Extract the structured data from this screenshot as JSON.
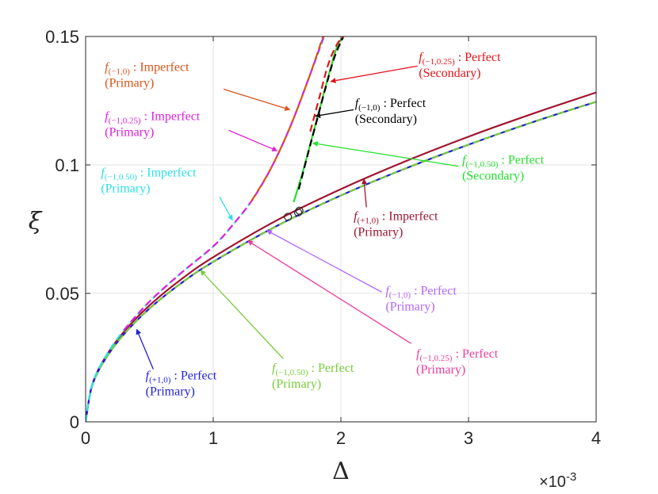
{
  "chart_data": {
    "type": "line",
    "title": "",
    "xlabel": "Δ",
    "ylabel": "ξ",
    "x_exponent": "×10-3",
    "xlim": [
      0,
      4
    ],
    "ylim": [
      0,
      0.15
    ],
    "xticks": [
      0,
      1,
      2,
      3,
      4
    ],
    "xtick_labels": [
      "0",
      "1",
      "2",
      "3",
      "4"
    ],
    "yticks": [
      0,
      0.05,
      0.1,
      0.15
    ],
    "ytick_labels": [
      "0",
      "0.05",
      "0.1",
      "0.15"
    ],
    "grid": true,
    "colors": {
      "imperfect_m10": "#d95319",
      "imperfect_m1025": "#e01fd9",
      "imperfect_m1050": "#2fe0e8",
      "perfect_p10": "#1f1fd9",
      "perfect_m1050_primary": "#77cc3a",
      "imperfect_p10": "#a2142f",
      "secondary_m1025": "#e8121a",
      "secondary_m10": "#000000",
      "secondary_m1050": "#21e02d",
      "primary_m10_arrow": "#b266ff",
      "primary_m1025_arrow": "#ee3d9c"
    },
    "series": [
      {
        "key": "p10_imperfect",
        "style": "solid",
        "color_key": "imperfect_p10",
        "x": [
          0,
          0.05,
          0.15,
          0.3,
          0.5,
          0.75,
          1.0,
          1.5,
          2.0,
          2.5,
          3.0,
          3.5,
          4.0
        ],
        "y": [
          0,
          0.0143,
          0.0248,
          0.0351,
          0.0453,
          0.0555,
          0.0641,
          0.0785,
          0.0906,
          0.1013,
          0.111,
          0.1199,
          0.1282
        ]
      },
      {
        "key": "p10_perfect",
        "style": "solid",
        "color_key": "perfect_p10",
        "x": [
          0,
          0.05,
          0.15,
          0.3,
          0.5,
          0.75,
          1.0,
          1.5,
          2.0,
          2.5,
          3.0,
          3.5,
          4.0
        ],
        "y": [
          0,
          0.0139,
          0.0241,
          0.0341,
          0.0441,
          0.054,
          0.0623,
          0.0763,
          0.0881,
          0.0985,
          0.1079,
          0.1166,
          0.1246
        ]
      },
      {
        "key": "m1050_perfect_primary",
        "style": "dashed",
        "color_key": "perfect_m1050_primary",
        "x": [
          0,
          0.05,
          0.15,
          0.3,
          0.5,
          0.75,
          1.0,
          1.5,
          2.0,
          2.5,
          3.0,
          3.5,
          4.0
        ],
        "y": [
          0,
          0.0139,
          0.0241,
          0.0341,
          0.0441,
          0.054,
          0.0623,
          0.0763,
          0.0881,
          0.0985,
          0.1079,
          0.1166,
          0.1246
        ]
      },
      {
        "key": "m1050_imperfect",
        "style": "dashed",
        "color_key": "imperfect_m1050",
        "x": [
          0,
          0.05,
          0.15,
          0.3,
          0.5,
          0.75,
          1.0,
          1.15,
          1.3,
          1.45,
          1.6,
          1.75,
          1.87
        ],
        "y": [
          0,
          0.0143,
          0.025,
          0.0357,
          0.0468,
          0.058,
          0.0683,
          0.0765,
          0.086,
          0.0985,
          0.1145,
          0.134,
          0.15
        ]
      },
      {
        "key": "m1025_imperfect",
        "style": "dashed",
        "color_key": "imperfect_m1025",
        "x": [
          0.3,
          0.5,
          0.75,
          1.0,
          1.15,
          1.3,
          1.45,
          1.6,
          1.75,
          1.865
        ],
        "y": [
          0.0357,
          0.0468,
          0.058,
          0.0683,
          0.0765,
          0.086,
          0.0985,
          0.1145,
          0.134,
          0.15
        ]
      },
      {
        "key": "m10_imperfect",
        "style": "dashed",
        "color_key": "imperfect_m10",
        "x": [
          1.3,
          1.45,
          1.6,
          1.75,
          1.86
        ],
        "y": [
          0.086,
          0.0985,
          0.1145,
          0.134,
          0.15
        ]
      },
      {
        "key": "m1050_secondary",
        "style": "solid",
        "color_key": "secondary_m1050",
        "x": [
          1.63,
          1.7,
          1.77,
          1.84,
          1.91,
          1.97,
          2.02
        ],
        "y": [
          0.0855,
          0.097,
          0.11,
          0.123,
          0.136,
          0.146,
          0.15
        ]
      },
      {
        "key": "m10_secondary",
        "style": "dashed",
        "color_key": "secondary_m10",
        "x": [
          1.67,
          1.74,
          1.81,
          1.88,
          1.95,
          2.02
        ],
        "y": [
          0.0905,
          0.104,
          0.117,
          0.13,
          0.142,
          0.15
        ]
      },
      {
        "key": "m1025_secondary",
        "style": "dashed",
        "color_key": "secondary_m1025",
        "x": [
          1.76,
          1.83,
          1.9,
          1.97,
          2.02
        ],
        "y": [
          0.113,
          0.126,
          0.139,
          0.147,
          0.15
        ]
      }
    ],
    "markers": [
      {
        "x": 1.585,
        "y": 0.0798
      },
      {
        "x": 1.665,
        "y": 0.0815
      },
      {
        "x": 1.675,
        "y": 0.0822
      }
    ],
    "annotations": [
      {
        "f": "f",
        "sub": "(−1,0)",
        "text": " : Imperfect",
        "line2": "(Primary)",
        "color": "#d95319",
        "tx": 0.15,
        "ty": 0.1365,
        "ax1": 1.08,
        "ay1": 0.1295,
        "ax2": 1.6,
        "ay2": 0.1215
      },
      {
        "f": "f",
        "sub": "(−1,0.25)",
        "text": " : Imperfect",
        "line2": "(Primary)",
        "color": "#e01fd9",
        "tx": 0.15,
        "ty": 0.1175,
        "ax1": 1.12,
        "ay1": 0.1135,
        "ax2": 1.5,
        "ay2": 0.1055
      },
      {
        "f": "f",
        "sub": "(−1,0.50)",
        "text": " : Imperfect",
        "line2": "(Primary)",
        "color": "#2fe0e8",
        "tx": 0.12,
        "ty": 0.0955,
        "ax1": 1.05,
        "ay1": 0.0875,
        "ax2": 1.15,
        "ay2": 0.0785
      },
      {
        "f": "f",
        "sub": "(−1,0.25)",
        "text": " : Perfect",
        "line2": "(Secondary)",
        "color": "#e8121a",
        "tx": 2.61,
        "ty": 0.1405,
        "ax1": 2.6,
        "ay1": 0.1385,
        "ax2": 1.92,
        "ay2": 0.1325
      },
      {
        "f": "f",
        "sub": "(−1,0)",
        "text": " : Perfect",
        "line2": "(Secondary)",
        "color": "#000000",
        "tx": 2.11,
        "ty": 0.1225,
        "ax1": 2.1,
        "ay1": 0.1215,
        "ax2": 1.8,
        "ay2": 0.119
      },
      {
        "f": "f",
        "sub": "(−1,0.50)",
        "text": " : Perfect",
        "line2": "(Secondary)",
        "color": "#21e02d",
        "tx": 2.95,
        "ty": 0.1005,
        "ax1": 2.92,
        "ay1": 0.0995,
        "ax2": 1.78,
        "ay2": 0.1085
      },
      {
        "f": "f",
        "sub": "(+1,0)",
        "text": " : Imperfect",
        "line2": "(Primary)",
        "color": "#a2142f",
        "tx": 2.1,
        "ty": 0.0785,
        "ax1": 2.2,
        "ay1": 0.0835,
        "ax2": 2.18,
        "ay2": 0.0945
      },
      {
        "f": "f",
        "sub": "(−1,0)",
        "text": " : Perfect",
        "line2": "(Primary)",
        "color": "#b266ff",
        "tx": 2.35,
        "ty": 0.0495,
        "ax1": 2.32,
        "ay1": 0.0505,
        "ax2": 1.42,
        "ay2": 0.0745
      },
      {
        "f": "f",
        "sub": "(−1,0.25)",
        "text": " : Perfect",
        "line2": "(Primary)",
        "color": "#ee3d9c",
        "tx": 2.59,
        "ty": 0.025,
        "ax1": 2.55,
        "ay1": 0.0305,
        "ax2": 1.27,
        "ay2": 0.0705
      },
      {
        "f": "f",
        "sub": "(+1,0)",
        "text": " : Perfect",
        "line2": "(Primary)",
        "color": "#1f1fd9",
        "tx": 0.47,
        "ty": 0.0165,
        "ax1": 0.53,
        "ay1": 0.0205,
        "ax2": 0.4,
        "ay2": 0.036
      },
      {
        "f": "f",
        "sub": "(−1,0.50)",
        "text": " : Perfect",
        "line2": "(Primary)",
        "color": "#77cc3a",
        "tx": 1.46,
        "ty": 0.0195,
        "ax1": 1.55,
        "ay1": 0.0245,
        "ax2": 0.9,
        "ay2": 0.059
      }
    ]
  }
}
